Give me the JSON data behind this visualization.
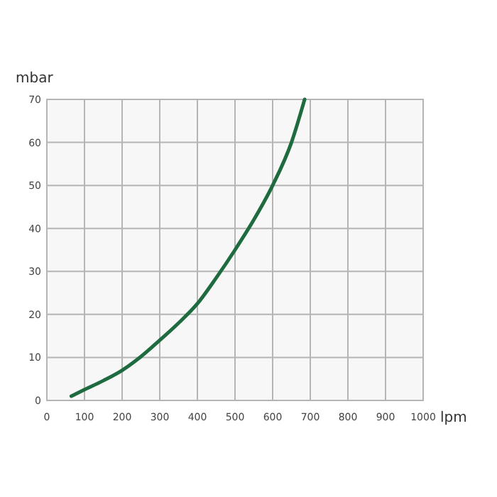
{
  "chart_data": {
    "type": "line",
    "ylabel": "mbar",
    "xlabel": "lpm",
    "series": [
      {
        "color": "#1e6b40",
        "x": [
          65,
          100,
          150,
          200,
          250,
          300,
          350,
          400,
          450,
          500,
          550,
          600,
          650,
          685
        ],
        "values": [
          1,
          2.5,
          4.6,
          7,
          10.2,
          14,
          18,
          22.5,
          28.5,
          35,
          42,
          50,
          60,
          70
        ]
      }
    ],
    "xlim": [
      0,
      1000
    ],
    "xticks": [
      0,
      100,
      200,
      300,
      400,
      500,
      600,
      700,
      800,
      900,
      1000
    ],
    "ylim": [
      0,
      70
    ],
    "yticks": [
      0,
      10,
      20,
      30,
      40,
      50,
      60,
      70
    ],
    "grid": true,
    "marker": "none",
    "line_style": "solid"
  }
}
